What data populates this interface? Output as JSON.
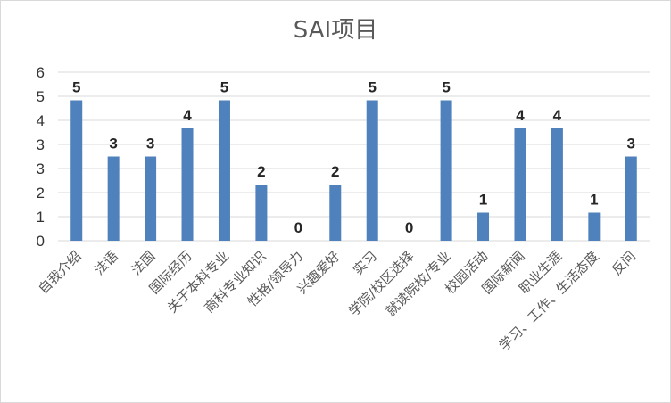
{
  "chart_data": {
    "type": "bar",
    "title": "SAI项目",
    "categories": [
      "自我介绍",
      "法语",
      "法国",
      "国际经历",
      "关于本科专业",
      "商科专业知识",
      "性格/领导力",
      "兴趣爱好",
      "实习",
      "学院/校区选择",
      "就读院校/专业",
      "校园活动",
      "国际新闻",
      "职业生涯",
      "学习、工作、生活态度",
      "反问"
    ],
    "values": [
      5,
      3,
      3,
      4,
      5,
      2,
      0,
      2,
      5,
      0,
      5,
      1,
      4,
      4,
      1,
      3
    ],
    "ytick_labels": [
      "0",
      "1",
      "2",
      "3",
      "3",
      "4",
      "5",
      "6"
    ],
    "ylim": [
      0,
      6
    ],
    "grid": true,
    "legend": "none",
    "xlabel": "",
    "ylabel": "",
    "bar_color": "#4f81bd"
  }
}
